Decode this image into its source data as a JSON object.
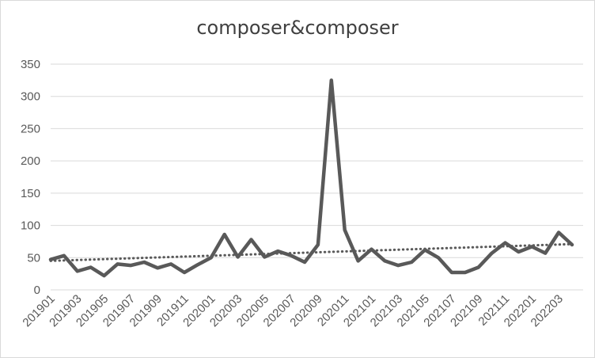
{
  "chart_data": {
    "type": "line",
    "title": "composer&composer",
    "xlabel": "",
    "ylabel": "",
    "ylim": [
      0,
      350
    ],
    "yticks": [
      0,
      50,
      100,
      150,
      200,
      250,
      300,
      350
    ],
    "grid": "horizontal",
    "legend": "none",
    "x": [
      "201901",
      "201902",
      "201903",
      "201904",
      "201905",
      "201906",
      "201907",
      "201908",
      "201909",
      "201910",
      "201911",
      "201912",
      "202001",
      "202002",
      "202003",
      "202004",
      "202005",
      "202006",
      "202007",
      "202008",
      "202009",
      "202010",
      "202011",
      "202012",
      "202101",
      "202102",
      "202103",
      "202104",
      "202105",
      "202106",
      "202107",
      "202108",
      "202109",
      "202110",
      "202111",
      "202112",
      "202201",
      "202202",
      "202203",
      "202204"
    ],
    "x_tick_labels": [
      "201901",
      "201903",
      "201905",
      "201907",
      "201909",
      "201911",
      "202001",
      "202003",
      "202005",
      "202007",
      "202009",
      "202011",
      "202101",
      "202103",
      "202105",
      "202107",
      "202109",
      "202111",
      "202201",
      "202203"
    ],
    "series": [
      {
        "values": [
          47,
          53,
          29,
          35,
          22,
          40,
          38,
          43,
          34,
          40,
          27,
          39,
          50,
          86,
          51,
          78,
          51,
          60,
          53,
          43,
          70,
          325,
          93,
          45,
          63,
          45,
          38,
          43,
          62,
          50,
          27,
          27,
          35,
          57,
          73,
          59,
          67,
          57,
          89,
          70
        ],
        "color": "#595959"
      }
    ],
    "trendline": {
      "type": "linear",
      "style": "dotted",
      "start": 45,
      "end": 71,
      "color": "#595959"
    }
  }
}
